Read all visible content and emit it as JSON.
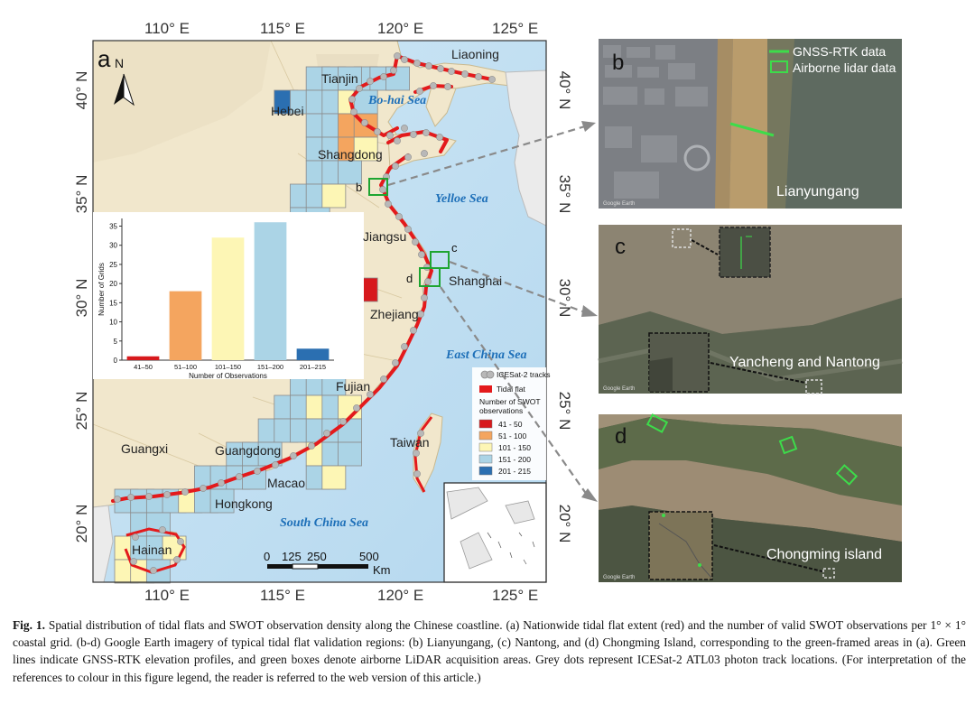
{
  "map": {
    "panel_letter": "a",
    "north": "N",
    "lon_labels": [
      "110° E",
      "115° E",
      "120° E",
      "125° E"
    ],
    "lat_labels": [
      "40° N",
      "35° N",
      "30° N",
      "25° N",
      "20° N"
    ],
    "provinces": [
      "Liaoning",
      "Tianjin",
      "Hebei",
      "Shangdong",
      "Jiangsu",
      "Shanghai",
      "Zhejiang",
      "Fujian",
      "Taiwan",
      "Guangdong",
      "Guangxi",
      "Macao",
      "Hongkong",
      "Hainan"
    ],
    "seas": [
      "Bo-hai Sea",
      "Yelloe Sea",
      "East China Sea",
      "South China Sea"
    ],
    "site_letters": [
      "b",
      "c",
      "d"
    ],
    "scale": {
      "ticks": [
        "0",
        "125",
        "250",
        "500"
      ],
      "unit": "Km"
    },
    "legend": {
      "icesat": "ICESat-2 tracks",
      "tidal": "Tidal flat",
      "title_lines": [
        "Number of SWOT",
        "observations"
      ],
      "classes": [
        {
          "label": "41 - 50",
          "color": "#d7191c"
        },
        {
          "label": "51 - 100",
          "color": "#f4a55f"
        },
        {
          "label": "101 - 150",
          "color": "#fdf6b5"
        },
        {
          "label": "151 - 200",
          "color": "#abd4e6"
        },
        {
          "label": "201 - 215",
          "color": "#2b6fb1"
        }
      ]
    }
  },
  "chart_data": {
    "type": "bar",
    "categories": [
      "41–50",
      "51–100",
      "101–150",
      "151–200",
      "201–215"
    ],
    "values": [
      1,
      18,
      32,
      36,
      3
    ],
    "colors": [
      "#d7191c",
      "#f4a55f",
      "#fdf6b5",
      "#abd4e6",
      "#2b6fb1"
    ],
    "xlabel": "Number of Observations",
    "ylabel": "Number of Grids",
    "yticks": [
      0,
      5,
      10,
      15,
      20,
      25,
      30,
      35
    ],
    "ylim": [
      0,
      37
    ]
  },
  "panels": {
    "b": {
      "letter": "b",
      "place": "Lianyungang",
      "legend_line": "GNSS-RTK data",
      "legend_box": "Airborne lidar data",
      "credit": "Google Earth"
    },
    "c": {
      "letter": "c",
      "place": "Yancheng and Nantong",
      "credit": "Google Earth"
    },
    "d": {
      "letter": "d",
      "place": "Chongming island",
      "credit": "Google Earth"
    }
  },
  "caption": {
    "label": "Fig. 1.",
    "text": "Spatial distribution of tidal flats and SWOT observation density along the Chinese coastline. (a) Nationwide tidal flat extent (red) and the number of valid SWOT observations per 1° × 1° coastal grid. (b-d) Google Earth imagery of typical tidal flat validation regions: (b) Lianyungang, (c) Nantong, and (d) Chongming Island, corresponding to the green-framed areas in (a). Green lines indicate GNSS-RTK elevation profiles, and green boxes denote airborne LiDAR acquisition areas. Grey dots represent ICESat-2 ATL03 photon track locations. (For interpretation of the references to colour in this figure legend, the reader is referred to the web version of this article.)"
  }
}
